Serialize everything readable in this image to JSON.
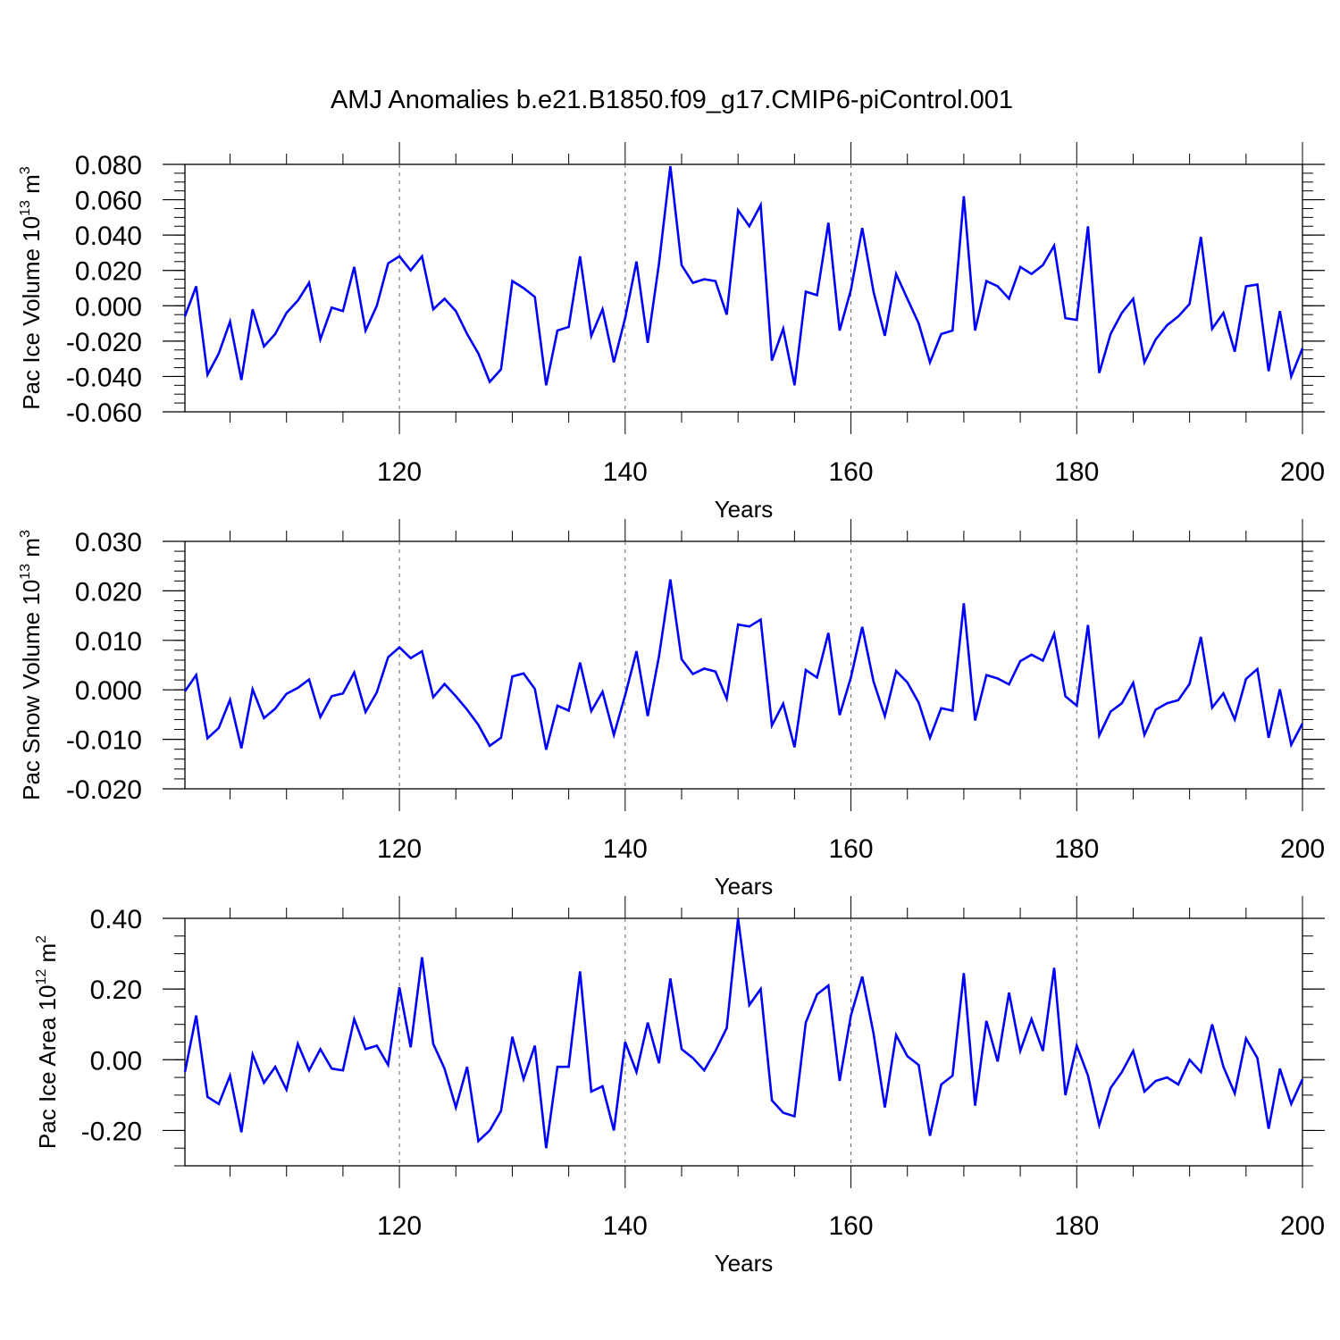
{
  "title": "AMJ Anomalies b.e21.B1850.f09_g17.CMIP6-piControl.001",
  "line_color": "#0000ff",
  "chart_data": [
    {
      "type": "line",
      "ylabel_main": "Pac Ice Volume 10",
      "ylabel_exp": "13",
      "ylabel_unit": "m",
      "ylabel_unit_exp": "3",
      "xlabel": "Years",
      "xlim": [
        101,
        200
      ],
      "ylim": [
        -0.06,
        0.08
      ],
      "yticks": [
        -0.06,
        -0.04,
        -0.02,
        0.0,
        0.02,
        0.04,
        0.06,
        0.08
      ],
      "ytick_labels": [
        "-0.060",
        "-0.040",
        "-0.020",
        "0.000",
        "0.020",
        "0.040",
        "0.060",
        "0.080"
      ],
      "yminor_step": 0.005,
      "xticks": [
        120,
        140,
        160,
        180,
        200
      ],
      "xtick_labels": [
        "120",
        "140",
        "160",
        "180",
        "200"
      ],
      "grid_x": [
        120,
        140,
        160,
        180
      ],
      "series": [
        {
          "name": "Pac Ice Volume",
          "x": [
            101,
            102,
            103,
            104,
            105,
            106,
            107,
            108,
            109,
            110,
            111,
            112,
            113,
            114,
            115,
            116,
            117,
            118,
            119,
            120,
            121,
            122,
            123,
            124,
            125,
            126,
            127,
            128,
            129,
            130,
            131,
            132,
            133,
            134,
            135,
            136,
            137,
            138,
            139,
            140,
            141,
            142,
            143,
            144,
            145,
            146,
            147,
            148,
            149,
            150,
            151,
            152,
            153,
            154,
            155,
            156,
            157,
            158,
            159,
            160,
            161,
            162,
            163,
            164,
            165,
            166,
            167,
            168,
            169,
            170,
            171,
            172,
            173,
            174,
            175,
            176,
            177,
            178,
            179,
            180,
            181,
            182,
            183,
            184,
            185,
            186,
            187,
            188,
            189,
            190,
            191,
            192,
            193,
            194,
            195,
            196,
            197,
            198,
            199,
            200
          ],
          "values": [
            -0.006,
            0.011,
            -0.039,
            -0.027,
            -0.009,
            -0.042,
            -0.002,
            -0.023,
            -0.016,
            -0.004,
            0.003,
            0.013,
            -0.019,
            -0.001,
            -0.003,
            0.022,
            -0.014,
            0.0,
            0.024,
            0.028,
            0.02,
            0.028,
            -0.002,
            0.004,
            -0.003,
            -0.016,
            -0.027,
            -0.043,
            -0.036,
            0.014,
            0.01,
            0.005,
            -0.045,
            -0.014,
            -0.012,
            0.028,
            -0.017,
            -0.002,
            -0.032,
            -0.007,
            0.025,
            -0.021,
            0.024,
            0.079,
            0.023,
            0.013,
            0.015,
            0.014,
            -0.005,
            0.054,
            0.045,
            0.057,
            -0.031,
            -0.013,
            -0.045,
            0.008,
            0.006,
            0.047,
            -0.014,
            0.009,
            0.044,
            0.008,
            -0.017,
            0.018,
            0.004,
            -0.01,
            -0.032,
            -0.016,
            -0.014,
            0.062,
            -0.014,
            0.014,
            0.011,
            0.004,
            0.022,
            0.018,
            0.023,
            0.034,
            -0.007,
            -0.008,
            0.045,
            -0.038,
            -0.016,
            -0.004,
            0.004,
            -0.032,
            -0.019,
            -0.011,
            -0.006,
            0.001,
            0.039,
            -0.013,
            -0.004,
            -0.026,
            0.011,
            0.012,
            -0.037,
            -0.003,
            -0.04,
            -0.024
          ]
        }
      ]
    },
    {
      "type": "line",
      "ylabel_main": "Pac Snow Volume 10",
      "ylabel_exp": "13",
      "ylabel_unit": "m",
      "ylabel_unit_exp": "3",
      "xlabel": "Years",
      "xlim": [
        101,
        200
      ],
      "ylim": [
        -0.02,
        0.03
      ],
      "yticks": [
        -0.02,
        -0.01,
        0.0,
        0.01,
        0.02,
        0.03
      ],
      "ytick_labels": [
        "-0.020",
        "-0.010",
        "0.000",
        "0.010",
        "0.020",
        "0.030"
      ],
      "yminor_step": 0.002,
      "xticks": [
        120,
        140,
        160,
        180,
        200
      ],
      "xtick_labels": [
        "120",
        "140",
        "160",
        "180",
        "200"
      ],
      "grid_x": [
        120,
        140,
        160,
        180
      ],
      "series": [
        {
          "name": "Pac Snow Volume",
          "x": [
            101,
            102,
            103,
            104,
            105,
            106,
            107,
            108,
            109,
            110,
            111,
            112,
            113,
            114,
            115,
            116,
            117,
            118,
            119,
            120,
            121,
            122,
            123,
            124,
            125,
            126,
            127,
            128,
            129,
            130,
            131,
            132,
            133,
            134,
            135,
            136,
            137,
            138,
            139,
            140,
            141,
            142,
            143,
            144,
            145,
            146,
            147,
            148,
            149,
            150,
            151,
            152,
            153,
            154,
            155,
            156,
            157,
            158,
            159,
            160,
            161,
            162,
            163,
            164,
            165,
            166,
            167,
            168,
            169,
            170,
            171,
            172,
            173,
            174,
            175,
            176,
            177,
            178,
            179,
            180,
            181,
            182,
            183,
            184,
            185,
            186,
            187,
            188,
            189,
            190,
            191,
            192,
            193,
            194,
            195,
            196,
            197,
            198,
            199,
            200
          ],
          "values": [
            -0.0003,
            0.003,
            -0.0098,
            -0.0077,
            -0.002,
            -0.0118,
            0.0001,
            -0.0057,
            -0.0038,
            -0.0008,
            0.0004,
            0.0021,
            -0.0055,
            -0.0013,
            -0.0007,
            0.0035,
            -0.0045,
            -0.0005,
            0.0066,
            0.0086,
            0.0064,
            0.0078,
            -0.0015,
            0.0012,
            -0.0013,
            -0.004,
            -0.0071,
            -0.0113,
            -0.0097,
            0.0027,
            0.0033,
            0.0002,
            -0.0121,
            -0.0032,
            -0.0042,
            0.0055,
            -0.0043,
            -0.0004,
            -0.0091,
            -0.0011,
            0.0078,
            -0.0053,
            0.0068,
            0.0223,
            0.0062,
            0.0032,
            0.0043,
            0.0037,
            -0.0018,
            0.0132,
            0.0128,
            0.0142,
            -0.0072,
            -0.0028,
            -0.0116,
            0.004,
            0.0025,
            0.0115,
            -0.0051,
            0.0025,
            0.0127,
            0.0017,
            -0.0053,
            0.0038,
            0.0015,
            -0.0026,
            -0.0097,
            -0.0037,
            -0.0042,
            0.0175,
            -0.0062,
            0.003,
            0.0023,
            0.0011,
            0.0058,
            0.0071,
            0.0059,
            0.0113,
            -0.0013,
            -0.0032,
            0.0131,
            -0.0092,
            -0.0044,
            -0.0027,
            0.0014,
            -0.0091,
            -0.004,
            -0.0027,
            -0.0021,
            0.0012,
            0.0107,
            -0.0036,
            -0.0007,
            -0.006,
            0.0022,
            0.0042,
            -0.0097,
            0.0001,
            -0.0111,
            -0.0068
          ]
        }
      ]
    },
    {
      "type": "line",
      "ylabel_main": "Pac Ice Area 10",
      "ylabel_exp": "12",
      "ylabel_unit": "m",
      "ylabel_unit_exp": "2",
      "xlabel": "Years",
      "xlim": [
        101,
        200
      ],
      "ylim": [
        -0.3,
        0.4
      ],
      "yticks": [
        -0.2,
        0.0,
        0.2,
        0.4
      ],
      "ytick_labels": [
        "-0.20",
        "0.00",
        "0.20",
        "0.40"
      ],
      "yminor_step": 0.05,
      "xticks": [
        120,
        140,
        160,
        180,
        200
      ],
      "xtick_labels": [
        "120",
        "140",
        "160",
        "180",
        "200"
      ],
      "grid_x": [
        120,
        140,
        160,
        180
      ],
      "series": [
        {
          "name": "Pac Ice Area",
          "x": [
            101,
            102,
            103,
            104,
            105,
            106,
            107,
            108,
            109,
            110,
            111,
            112,
            113,
            114,
            115,
            116,
            117,
            118,
            119,
            120,
            121,
            122,
            123,
            124,
            125,
            126,
            127,
            128,
            129,
            130,
            131,
            132,
            133,
            134,
            135,
            136,
            137,
            138,
            139,
            140,
            141,
            142,
            143,
            144,
            145,
            146,
            147,
            148,
            149,
            150,
            151,
            152,
            153,
            154,
            155,
            156,
            157,
            158,
            159,
            160,
            161,
            162,
            163,
            164,
            165,
            166,
            167,
            168,
            169,
            170,
            171,
            172,
            173,
            174,
            175,
            176,
            177,
            178,
            179,
            180,
            181,
            182,
            183,
            184,
            185,
            186,
            187,
            188,
            189,
            190,
            191,
            192,
            193,
            194,
            195,
            196,
            197,
            198,
            199,
            200
          ],
          "values": [
            -0.035,
            0.125,
            -0.105,
            -0.125,
            -0.045,
            -0.205,
            0.015,
            -0.065,
            -0.02,
            -0.085,
            0.045,
            -0.03,
            0.03,
            -0.025,
            -0.03,
            0.115,
            0.03,
            0.04,
            -0.015,
            0.205,
            0.035,
            0.29,
            0.045,
            -0.025,
            -0.135,
            -0.02,
            -0.23,
            -0.2,
            -0.145,
            0.065,
            -0.055,
            0.04,
            -0.25,
            -0.02,
            -0.02,
            0.25,
            -0.09,
            -0.075,
            -0.2,
            0.05,
            -0.035,
            0.105,
            -0.01,
            0.23,
            0.03,
            0.005,
            -0.03,
            0.025,
            0.09,
            0.4,
            0.155,
            0.2,
            -0.115,
            -0.15,
            -0.16,
            0.105,
            0.185,
            0.21,
            -0.06,
            0.125,
            0.235,
            0.075,
            -0.135,
            0.07,
            0.01,
            -0.015,
            -0.215,
            -0.07,
            -0.045,
            0.245,
            -0.13,
            0.11,
            -0.005,
            0.19,
            0.025,
            0.115,
            0.025,
            0.26,
            -0.1,
            0.04,
            -0.045,
            -0.185,
            -0.08,
            -0.035,
            0.025,
            -0.09,
            -0.06,
            -0.05,
            -0.07,
            0.0,
            -0.035,
            0.1,
            -0.02,
            -0.095,
            0.06,
            0.005,
            -0.195,
            -0.025,
            -0.125,
            -0.055
          ]
        }
      ]
    }
  ]
}
